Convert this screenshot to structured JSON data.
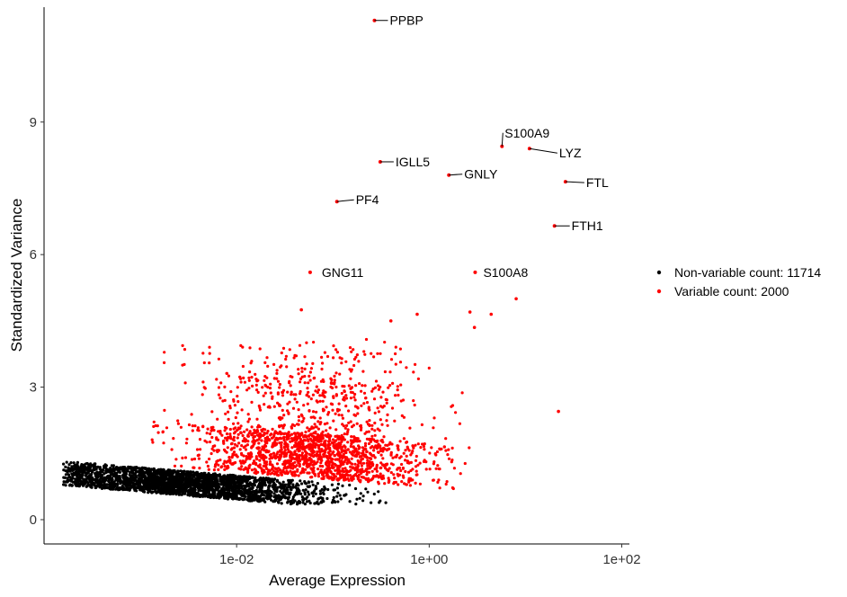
{
  "chart_data": {
    "type": "scatter",
    "xlabel": "Average Expression",
    "ylabel": "Standardized Variance",
    "x_scale": "log10",
    "xlim": [
      0.0001,
      120
    ],
    "ylim": [
      -0.55,
      11.6
    ],
    "x_ticks": [
      {
        "value": 0.01,
        "label": "1e-02"
      },
      {
        "value": 1,
        "label": "1e+00"
      },
      {
        "value": 100,
        "label": "1e+02"
      }
    ],
    "y_ticks": [
      {
        "value": 0,
        "label": "0"
      },
      {
        "value": 3,
        "label": "3"
      },
      {
        "value": 6,
        "label": "6"
      },
      {
        "value": 9,
        "label": "9"
      }
    ],
    "grid": false,
    "legend_position": "right",
    "series": [
      {
        "name": "Non-variable count: 11714",
        "color": "#000000"
      },
      {
        "name": "Variable count: 2000",
        "color": "#ff0000"
      }
    ],
    "labeled_points": [
      {
        "gene": "PPBP",
        "x": 0.27,
        "y": 11.3
      },
      {
        "gene": "S100A9",
        "x": 5.7,
        "y": 8.45
      },
      {
        "gene": "LYZ",
        "x": 11.0,
        "y": 8.4
      },
      {
        "gene": "IGLL5",
        "x": 0.31,
        "y": 8.1
      },
      {
        "gene": "GNLY",
        "x": 1.6,
        "y": 7.8
      },
      {
        "gene": "FTL",
        "x": 26.0,
        "y": 7.65
      },
      {
        "gene": "PF4",
        "x": 0.11,
        "y": 7.2
      },
      {
        "gene": "FTH1",
        "x": 20.0,
        "y": 6.65
      },
      {
        "gene": "GNG11",
        "x": 0.058,
        "y": 5.6
      },
      {
        "gene": "S100A8",
        "x": 3.0,
        "y": 5.6
      }
    ],
    "other_highlighted_points": [
      {
        "x": 0.047,
        "y": 4.75
      },
      {
        "x": 0.4,
        "y": 4.5
      },
      {
        "x": 0.75,
        "y": 4.65
      },
      {
        "x": 2.65,
        "y": 4.7
      },
      {
        "x": 4.4,
        "y": 4.65
      },
      {
        "x": 8.0,
        "y": 5.0
      },
      {
        "x": 2.95,
        "y": 4.35
      },
      {
        "x": 22.0,
        "y": 2.45
      }
    ]
  }
}
